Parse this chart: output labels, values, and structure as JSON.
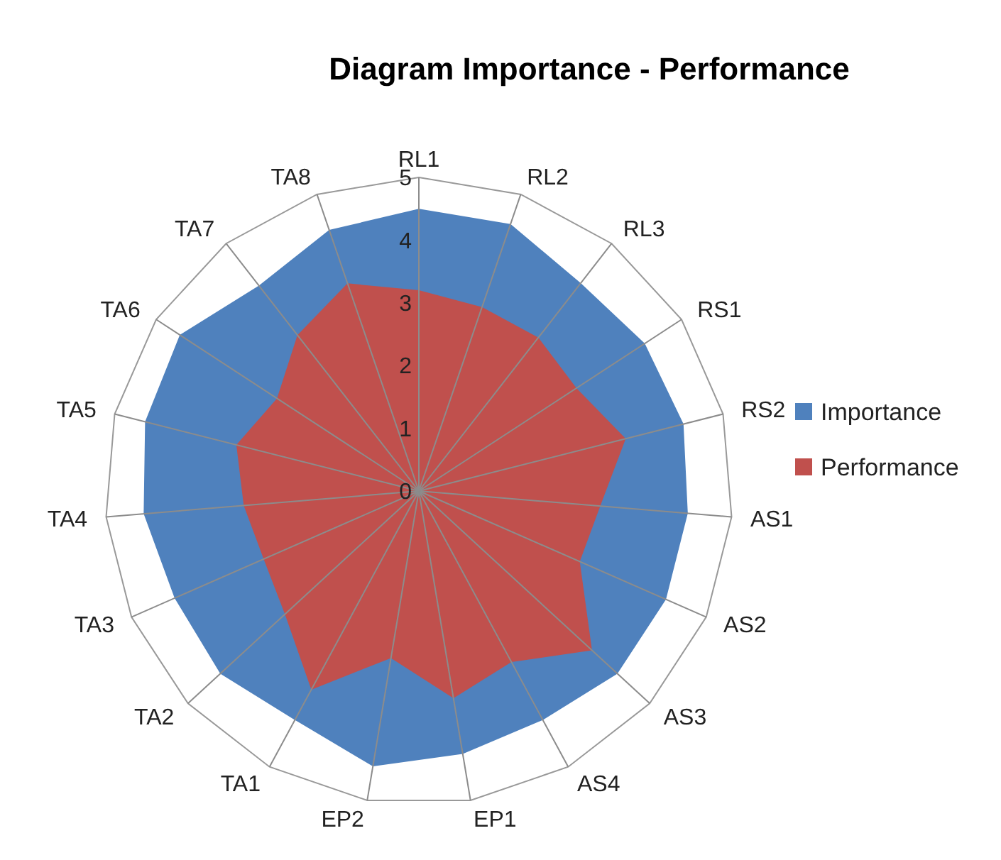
{
  "chart_data": {
    "type": "radar",
    "title": "Diagram Importance - Performance",
    "categories": [
      "RL1",
      "RL2",
      "RL3",
      "RS1",
      "RS2",
      "AS1",
      "AS2",
      "AS3",
      "AS4",
      "EP1",
      "EP2",
      "TA1",
      "TA2",
      "TA3",
      "TA4",
      "TA5",
      "TA6",
      "TA7",
      "TA8"
    ],
    "ylim": [
      0,
      5
    ],
    "yticks": [
      0,
      1,
      2,
      3,
      4,
      5
    ],
    "legend": "right",
    "series": [
      {
        "name": "Importance",
        "color": "#4f81bd",
        "values": [
          4.5,
          4.5,
          4.2,
          4.3,
          4.35,
          4.3,
          4.3,
          4.3,
          4.15,
          4.25,
          4.45,
          4.15,
          4.3,
          4.25,
          4.4,
          4.5,
          4.55,
          4.15,
          4.4
        ]
      },
      {
        "name": "Performance",
        "color": "#c0504d",
        "values": [
          3.2,
          3.1,
          3.1,
          3.0,
          3.4,
          2.9,
          2.8,
          3.75,
          3.1,
          3.35,
          2.7,
          3.6,
          2.9,
          2.7,
          2.8,
          3.0,
          2.7,
          3.15,
          3.5
        ]
      }
    ]
  }
}
